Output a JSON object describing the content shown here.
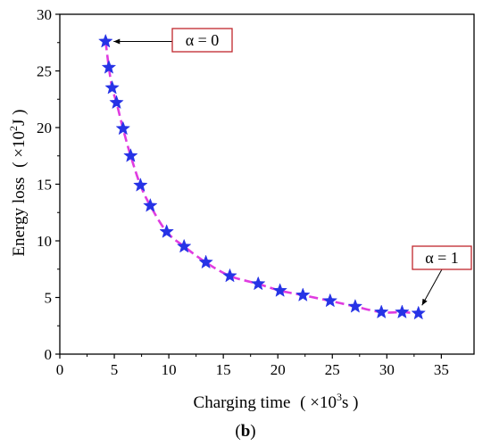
{
  "chart_data": {
    "type": "line",
    "xlabel_main": "Charging time",
    "xlabel_unit_pre": "( ×10",
    "xlabel_unit_sup": "3",
    "xlabel_unit_post": "s )",
    "ylabel_main": "Energy loss",
    "ylabel_unit_pre": "( ×10",
    "ylabel_unit_sup": "2",
    "ylabel_unit_post": "J )",
    "xlim": [
      0,
      38
    ],
    "ylim": [
      0,
      30
    ],
    "x_ticks": [
      "0",
      "5",
      "10",
      "15",
      "20",
      "25",
      "30",
      "35"
    ],
    "y_ticks": [
      "0",
      "5",
      "10",
      "15",
      "20",
      "25",
      "30"
    ],
    "x_tick_values": [
      0,
      5,
      10,
      15,
      20,
      25,
      30,
      35
    ],
    "y_tick_values": [
      0,
      5,
      10,
      15,
      20,
      25,
      30
    ],
    "grid": false,
    "caption_pre": "(",
    "caption_bold": "b",
    "caption_post": ")",
    "series": [
      {
        "marker": "star",
        "marker_color": "#2633e6",
        "line_color": "#e03ce0",
        "line_style": "dashed",
        "x": [
          4.2,
          4.5,
          4.8,
          5.2,
          5.8,
          6.5,
          7.4,
          8.3,
          9.8,
          11.4,
          13.4,
          15.6,
          18.2,
          20.2,
          22.3,
          24.8,
          27.1,
          29.5,
          31.4,
          32.9
        ],
        "y": [
          27.6,
          25.3,
          23.5,
          22.2,
          19.9,
          17.5,
          14.9,
          13.1,
          10.8,
          9.5,
          8.1,
          6.9,
          6.2,
          5.6,
          5.2,
          4.7,
          4.2,
          3.7,
          3.7,
          3.6
        ]
      }
    ],
    "annotations": [
      {
        "text": "α = 0",
        "target_x": 4.2,
        "target_y": 27.6
      },
      {
        "text": "α = 1",
        "target_x": 32.9,
        "target_y": 3.6
      }
    ],
    "colors": {
      "annotation_box_border": "#c0272d",
      "axis": "#000000"
    }
  }
}
